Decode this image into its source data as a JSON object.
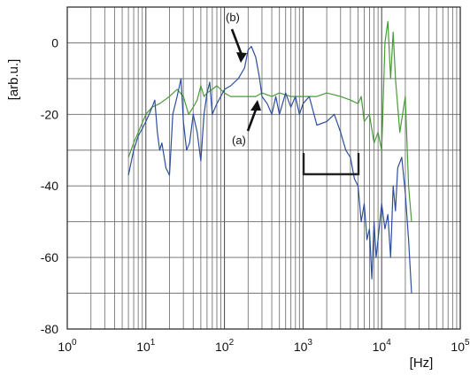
{
  "chart_data": {
    "type": "line",
    "title": "",
    "xlabel": "[Hz]",
    "ylabel": "[arb.u.]",
    "xscale": "log",
    "xlim": [
      1,
      100000
    ],
    "ylim": [
      -80,
      10
    ],
    "grid": true,
    "x_ticks": [
      {
        "base": "10",
        "exp": "0"
      },
      {
        "base": "10",
        "exp": "1"
      },
      {
        "base": "10",
        "exp": "2"
      },
      {
        "base": "10",
        "exp": "3"
      },
      {
        "base": "10",
        "exp": "4"
      },
      {
        "base": "10",
        "exp": "5"
      }
    ],
    "y_ticks": [
      "0",
      "-20",
      "-40",
      "-60",
      "-80"
    ],
    "y_tick_values": [
      0,
      -20,
      -40,
      -60,
      -80
    ],
    "series": [
      {
        "name": "(a)",
        "color": "#4a9a3a",
        "x": [
          6,
          7,
          8,
          10,
          12,
          15,
          20,
          25,
          30,
          35,
          40,
          45,
          50,
          55,
          60,
          70,
          80,
          100,
          120,
          150,
          200,
          250,
          300,
          400,
          500,
          700,
          1000,
          1500,
          2000,
          3000,
          4000,
          5000,
          5500,
          6000,
          7000,
          8000,
          9000,
          10000,
          10500,
          11000,
          12000,
          13000,
          14000,
          15000,
          17000,
          20000,
          22000,
          24000
        ],
        "values": [
          -32,
          -28,
          -25,
          -20,
          -18,
          -17,
          -15,
          -13,
          -15,
          -20,
          -18,
          -16,
          -12,
          -15,
          -14,
          -13,
          -12,
          -14,
          -15,
          -15,
          -15,
          -15,
          -14,
          -15,
          -14,
          -15,
          -15,
          -15,
          -14,
          -15,
          -16,
          -17,
          -15,
          -22,
          -20,
          -28,
          -25,
          -30,
          -15,
          0,
          6,
          -10,
          3,
          -10,
          -25,
          -15,
          -40,
          -50
        ]
      },
      {
        "name": "(b)",
        "color": "#2c4e9e",
        "x": [
          6,
          7,
          8,
          9,
          10,
          11,
          12,
          13,
          14,
          15,
          16,
          18,
          20,
          22,
          25,
          28,
          30,
          33,
          36,
          40,
          45,
          50,
          55,
          60,
          65,
          70,
          80,
          90,
          100,
          120,
          150,
          180,
          200,
          220,
          250,
          280,
          300,
          350,
          400,
          450,
          500,
          600,
          700,
          800,
          900,
          1000,
          1200,
          1500,
          2000,
          2500,
          3000,
          3500,
          4000,
          4500,
          5000,
          5500,
          6000,
          6500,
          7000,
          7500,
          8000,
          8500,
          9000,
          10000,
          11000,
          12000,
          13000,
          14000,
          15000,
          16000,
          18000,
          20000,
          22000,
          24000
        ],
        "values": [
          -37,
          -30,
          -26,
          -24,
          -22,
          -20,
          -18,
          -16,
          -25,
          -30,
          -28,
          -35,
          -37,
          -20,
          -15,
          -10,
          -22,
          -30,
          -28,
          -20,
          -25,
          -33,
          -20,
          -14,
          -11,
          -20,
          -17,
          -15,
          -13,
          -12,
          -10,
          -7,
          -2,
          -1,
          -4,
          -10,
          -15,
          -17,
          -20,
          -15,
          -20,
          -14,
          -18,
          -15,
          -20,
          -17,
          -15,
          -23,
          -22,
          -20,
          -25,
          -30,
          -32,
          -38,
          -40,
          -50,
          -45,
          -55,
          -52,
          -66,
          -50,
          -60,
          -55,
          -45,
          -52,
          -48,
          -60,
          -40,
          -47,
          -35,
          -32,
          -42,
          -55,
          -70
        ]
      }
    ],
    "annotations": [
      {
        "label": "(a)",
        "text": "(a)"
      },
      {
        "label": "(b)",
        "text": "(b)"
      }
    ]
  }
}
